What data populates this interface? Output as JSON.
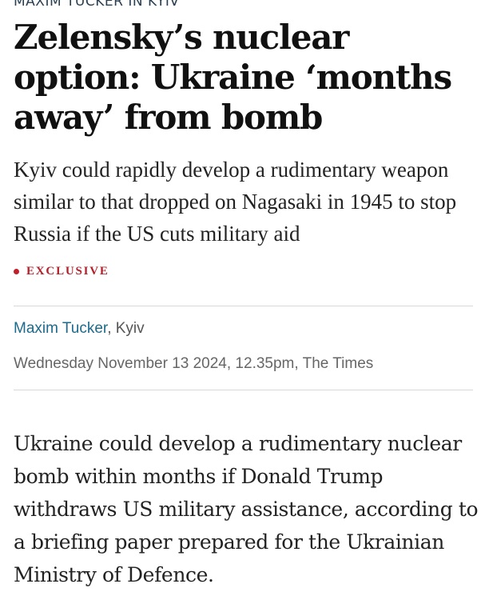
{
  "article": {
    "kicker": "MAXIM TUCKER IN KYIV",
    "headline": "Zelensky’s nuclear option: Ukraine ‘months away’ from bomb",
    "standfirst": "Kyiv could rapidly develop a rudimentary weapon similar to that dropped on Nagasaki in 1945 to stop Russia if the US cuts military aid",
    "badge": "EXCLUSIVE",
    "author": "Maxim Tucker",
    "location": ", Kyiv",
    "dateline": "Wednesday November 13 2024, 12.35pm, The Times",
    "body": "Ukraine could develop a rudimentary nuclear bomb within months if Donald Trump withdraws US military assistance, according to a briefing paper prepared for the Ukrainian Ministry of Defence."
  },
  "colors": {
    "accent": "#b3202a",
    "author_link": "#1e6a8a"
  }
}
